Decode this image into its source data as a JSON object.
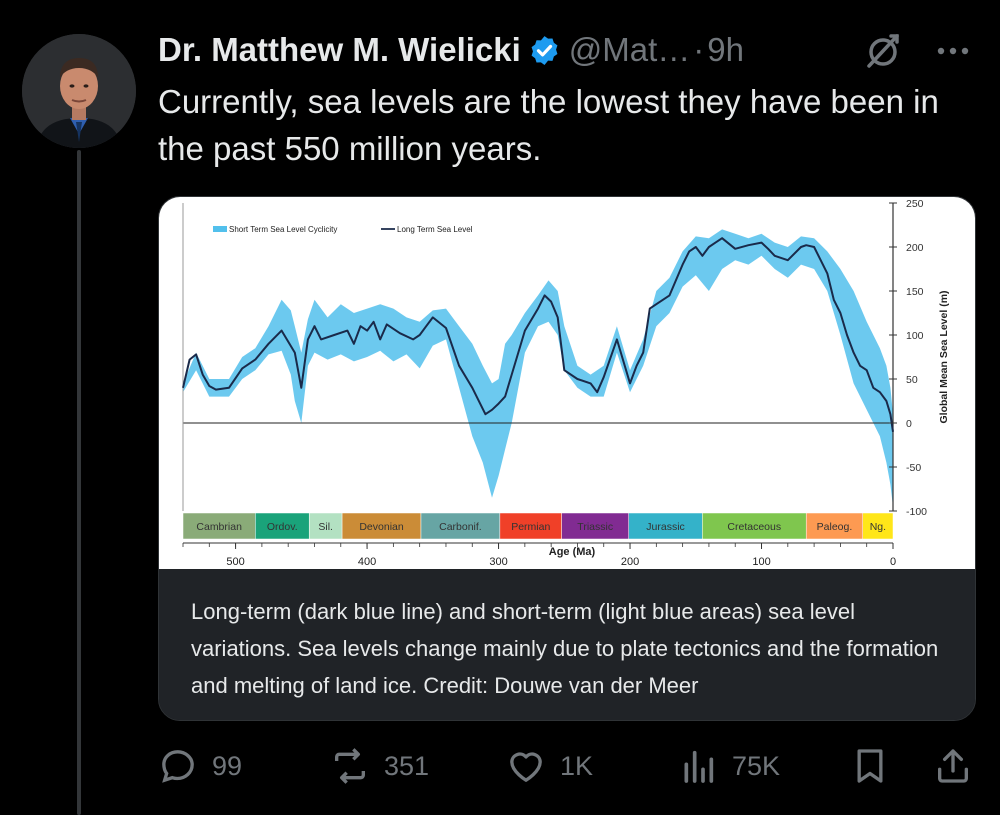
{
  "tweet": {
    "author": {
      "display_name": "Dr. Matthew M. Wielicki",
      "handle": "@Mat…",
      "separator": "·",
      "time": "9h"
    },
    "text": "Currently, sea levels are the lowest they have been in the past 550 million years.",
    "media_caption": "Long-term (dark blue line) and short-term (light blue areas) sea level variations. Sea levels change mainly due to plate tectonics and the formation and melting of land ice. Credit: Douwe van der Meer",
    "actions": {
      "replies": {
        "count": "99",
        "icon": "reply-icon"
      },
      "reposts": {
        "count": "351",
        "icon": "repost-icon"
      },
      "likes": {
        "count": "1K",
        "icon": "heart-icon"
      },
      "views": {
        "count": "75K",
        "icon": "views-icon"
      },
      "bookmark": {
        "icon": "bookmark-icon"
      },
      "share": {
        "icon": "share-icon"
      }
    }
  },
  "colors": {
    "background": "#000000",
    "text": "#e7e9ea",
    "muted": "#71767b",
    "verified": "#1d9bf0",
    "caption_bg": "#202327"
  },
  "chart_data": {
    "type": "area",
    "xlabel": "Age (Ma)",
    "ylabel": "Global Mean Sea Level (m)",
    "xlim": [
      540,
      0
    ],
    "ylim": [
      -100,
      250
    ],
    "x_ticks": [
      500,
      400,
      300,
      200,
      100,
      0
    ],
    "y_ticks": [
      250,
      200,
      150,
      100,
      50,
      0,
      -50,
      -100
    ],
    "legend": [
      "Short Term Sea Level Cyclicity",
      "Long Term Sea Level"
    ],
    "legend_position": "top-left",
    "series": [
      {
        "name": "Long Term Sea Level",
        "color": "#1a2a4a",
        "x": [
          540,
          535,
          530,
          525,
          520,
          515,
          505,
          495,
          485,
          475,
          465,
          455,
          450,
          445,
          440,
          435,
          425,
          415,
          410,
          405,
          400,
          395,
          390,
          385,
          375,
          365,
          360,
          355,
          350,
          340,
          330,
          320,
          310,
          305,
          300,
          295,
          290,
          280,
          270,
          265,
          260,
          255,
          250,
          240,
          230,
          225,
          220,
          210,
          200,
          195,
          190,
          185,
          180,
          170,
          160,
          155,
          150,
          145,
          140,
          135,
          130,
          120,
          110,
          100,
          95,
          90,
          80,
          70,
          66,
          60,
          55,
          50,
          45,
          40,
          35,
          30,
          25,
          20,
          15,
          10,
          5,
          2,
          0
        ],
        "y": [
          40,
          72,
          78,
          55,
          42,
          38,
          40,
          62,
          72,
          90,
          105,
          80,
          40,
          95,
          110,
          95,
          100,
          105,
          90,
          110,
          105,
          115,
          95,
          112,
          102,
          95,
          100,
          110,
          120,
          108,
          65,
          40,
          10,
          15,
          22,
          30,
          55,
          105,
          130,
          145,
          138,
          120,
          60,
          50,
          45,
          35,
          52,
          95,
          45,
          65,
          80,
          130,
          135,
          145,
          180,
          195,
          200,
          190,
          200,
          205,
          210,
          198,
          202,
          205,
          198,
          190,
          185,
          200,
          202,
          200,
          185,
          170,
          140,
          125,
          100,
          80,
          65,
          60,
          40,
          35,
          25,
          10,
          -10
        ]
      },
      {
        "name": "Short Term Sea Level Cyclicity",
        "color": "#52c0ec",
        "x": [
          540,
          530,
          520,
          505,
          495,
          485,
          475,
          465,
          458,
          455,
          450,
          445,
          440,
          430,
          420,
          410,
          400,
          390,
          380,
          370,
          360,
          350,
          340,
          330,
          320,
          312,
          305,
          300,
          295,
          290,
          280,
          270,
          262,
          255,
          250,
          240,
          230,
          220,
          210,
          200,
          190,
          180,
          170,
          160,
          150,
          140,
          130,
          120,
          110,
          100,
          90,
          80,
          70,
          60,
          50,
          40,
          30,
          20,
          10,
          5,
          2,
          0
        ],
        "upper": [
          45,
          80,
          50,
          50,
          75,
          85,
          110,
          140,
          128,
          110,
          80,
          118,
          140,
          120,
          135,
          125,
          130,
          135,
          130,
          120,
          115,
          128,
          130,
          110,
          90,
          65,
          45,
          50,
          90,
          100,
          125,
          145,
          162,
          150,
          110,
          65,
          55,
          65,
          110,
          60,
          95,
          150,
          165,
          195,
          212,
          210,
          220,
          215,
          210,
          215,
          205,
          200,
          212,
          210,
          195,
          175,
          150,
          115,
          85,
          65,
          40,
          10
        ],
        "lower": [
          35,
          60,
          30,
          30,
          50,
          60,
          78,
          82,
          55,
          25,
          0,
          65,
          80,
          72,
          78,
          70,
          75,
          82,
          70,
          78,
          62,
          88,
          95,
          40,
          -15,
          -45,
          -85,
          -60,
          -30,
          0,
          80,
          110,
          115,
          100,
          60,
          40,
          30,
          30,
          80,
          35,
          65,
          110,
          125,
          155,
          168,
          150,
          175,
          185,
          180,
          190,
          175,
          165,
          180,
          175,
          150,
          100,
          45,
          15,
          -15,
          -45,
          -70,
          -95
        ]
      }
    ],
    "periods": [
      {
        "name": "Cambrian",
        "start": 540,
        "end": 485,
        "color": "#8aab78"
      },
      {
        "name": "Ordov.",
        "start": 485,
        "end": 444,
        "color": "#1aa37a"
      },
      {
        "name": "Sil.",
        "start": 444,
        "end": 419,
        "color": "#b3e1c2"
      },
      {
        "name": "Devonian",
        "start": 419,
        "end": 359,
        "color": "#cb8c37"
      },
      {
        "name": "Carbonif.",
        "start": 359,
        "end": 299,
        "color": "#67a5a4"
      },
      {
        "name": "Permian",
        "start": 299,
        "end": 252,
        "color": "#f04028"
      },
      {
        "name": "Triassic",
        "start": 252,
        "end": 201,
        "color": "#812b92"
      },
      {
        "name": "Jurassic",
        "start": 201,
        "end": 145,
        "color": "#34b2c9"
      },
      {
        "name": "Cretaceous",
        "start": 145,
        "end": 66,
        "color": "#7fc64e"
      },
      {
        "name": "Paleog.",
        "start": 66,
        "end": 23,
        "color": "#fd9a52"
      },
      {
        "name": "Ng.",
        "start": 23,
        "end": 0,
        "color": "#ffe619"
      }
    ]
  }
}
